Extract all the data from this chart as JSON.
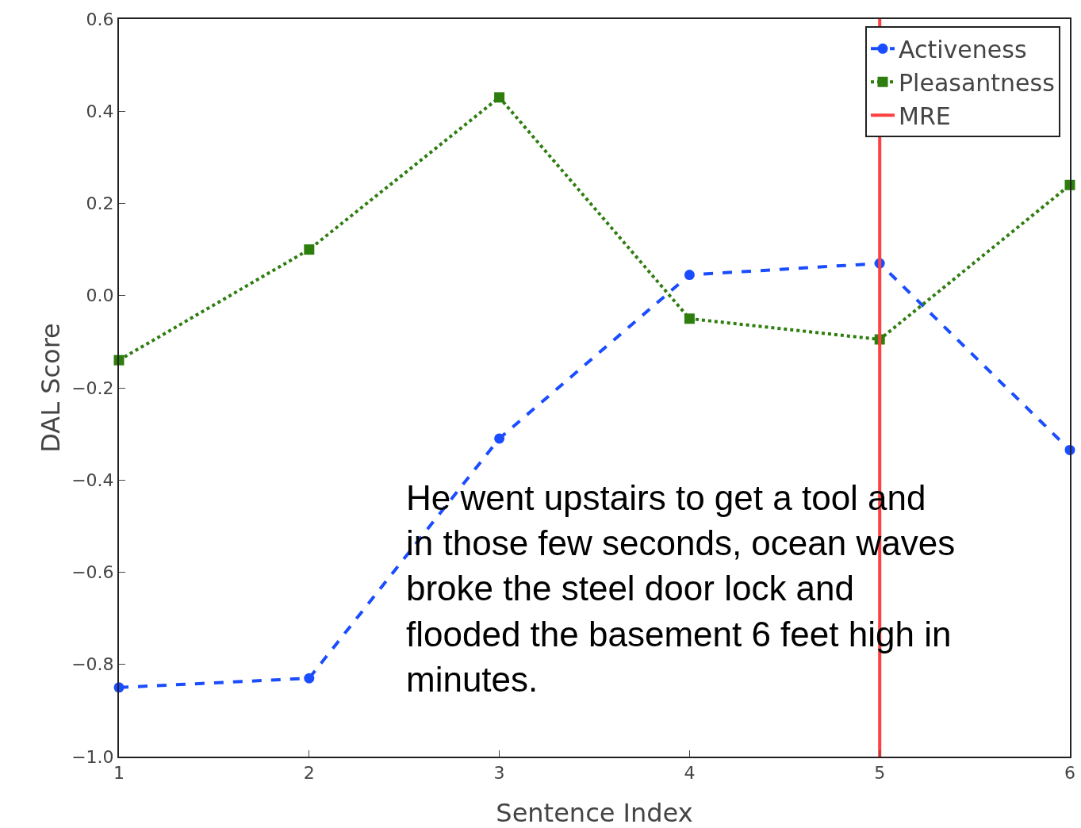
{
  "chart_data": {
    "type": "line",
    "xlabel": "Sentence Index",
    "ylabel": "DAL Score",
    "x": [
      1,
      2,
      3,
      4,
      5,
      6
    ],
    "series": [
      {
        "name": "Activeness",
        "color": "#1a4dff",
        "values": [
          -0.85,
          -0.83,
          -0.31,
          0.045,
          0.07,
          -0.335
        ],
        "line_style": "dashed",
        "marker": "circle"
      },
      {
        "name": "Pleasantness",
        "color": "#2e7d0f",
        "values": [
          -0.14,
          0.1,
          0.43,
          -0.05,
          -0.095,
          0.24
        ],
        "line_style": "dotted",
        "marker": "square"
      }
    ],
    "ref_lines": [
      {
        "axis": "x",
        "value": 5,
        "label": "MRE",
        "color": "#ff4040"
      }
    ],
    "xlim": [
      1,
      6
    ],
    "xticks": [
      1,
      2,
      3,
      4,
      5,
      6
    ],
    "ylim": [
      -1.0,
      0.6
    ],
    "yticks": [
      {
        "value": -1.0,
        "label": "−1.0"
      },
      {
        "value": -0.8,
        "label": "−0.8"
      },
      {
        "value": -0.6,
        "label": "−0.6"
      },
      {
        "value": -0.4,
        "label": "−0.4"
      },
      {
        "value": -0.2,
        "label": "−0.2"
      },
      {
        "value": 0,
        "label": "0.0"
      },
      {
        "value": 0.2,
        "label": "0.2"
      },
      {
        "value": 0.4,
        "label": "0.4"
      },
      {
        "value": 0.6,
        "label": "0.6"
      }
    ],
    "grid": false,
    "legend": "top right",
    "annotations": [
      "He went upstairs to get a tool and in those few seconds, ocean waves broke the steel door lock and flooded the basement 6 feet high in minutes."
    ]
  }
}
